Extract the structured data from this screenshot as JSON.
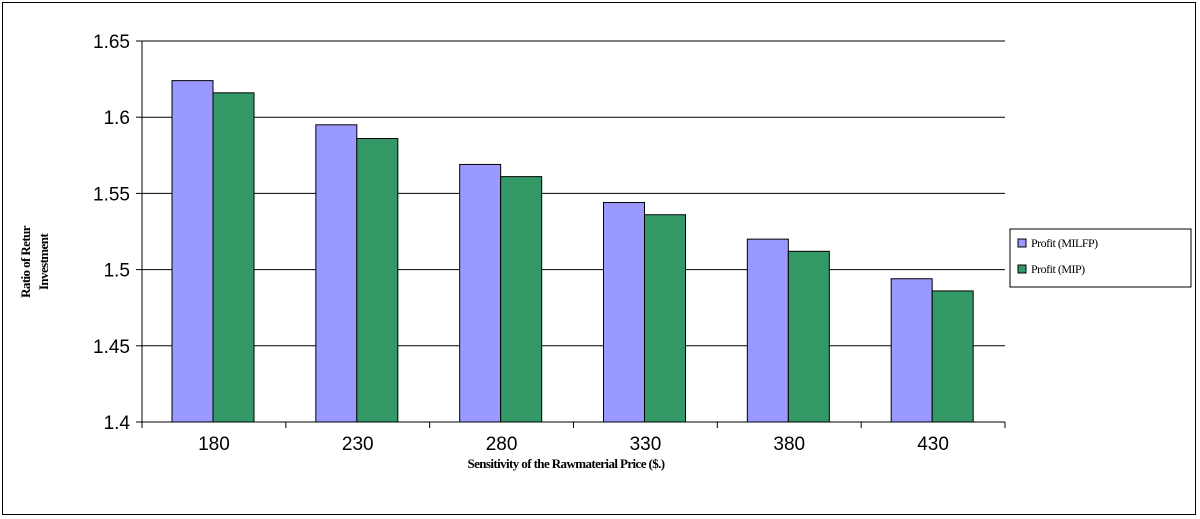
{
  "colors": {
    "series_1": "#9999ff",
    "series_2": "#339966",
    "grid": "#000000",
    "axis": "#000000"
  },
  "chart_data": {
    "type": "bar",
    "categories": [
      "180",
      "230",
      "280",
      "330",
      "380",
      "430"
    ],
    "series": [
      {
        "name": "Profit (MILFP)",
        "values": [
          1.624,
          1.595,
          1.569,
          1.544,
          1.52,
          1.494
        ]
      },
      {
        "name": "Profit (MIP)",
        "values": [
          1.616,
          1.586,
          1.561,
          1.536,
          1.512,
          1.486
        ]
      }
    ],
    "xlabel": "Sensitivity of the Rawmaterial Price ($.)",
    "ylabel_line1": "Ratio of Retur",
    "ylabel_line2": "Investment",
    "ylim": [
      1.4,
      1.65
    ],
    "yticks": [
      "1.4",
      "1.45",
      "1.5",
      "1.55",
      "1.6",
      "1.65"
    ],
    "grid": "horizontal",
    "legend_position": "right"
  }
}
